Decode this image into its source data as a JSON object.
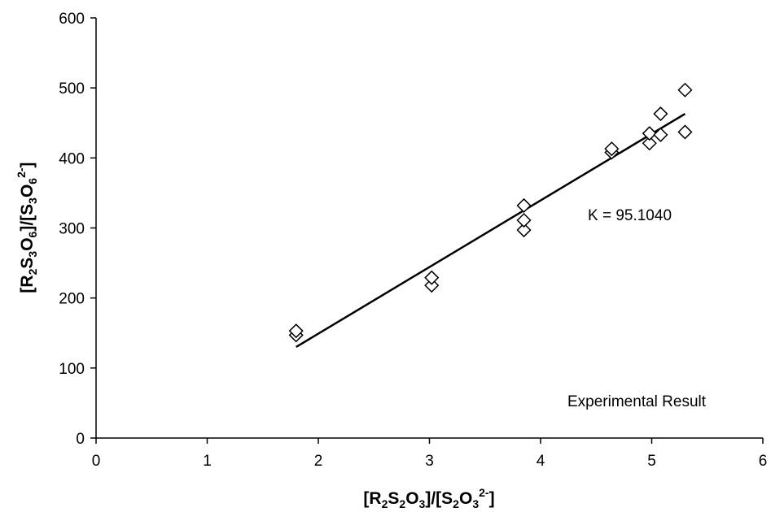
{
  "chart_data": {
    "type": "scatter",
    "xlim": [
      0,
      6
    ],
    "ylim": [
      0,
      600
    ],
    "x_ticks": [
      "0",
      "1",
      "2",
      "3",
      "4",
      "5",
      "6"
    ],
    "y_ticks": [
      "0",
      "100",
      "200",
      "300",
      "400",
      "500",
      "600"
    ],
    "xlabel": {
      "main": "[R",
      "sub1": "2",
      "mid1": "S",
      "sub2": "2",
      "mid2": "O",
      "sub3": "3",
      "mid3": "]/[S",
      "sub4": "2",
      "mid4": "O",
      "sub5": "3",
      "sup": "2-",
      "end": "]"
    },
    "ylabel": {
      "main": "[R",
      "sub1": "2",
      "mid1": "S",
      "sub2": "3",
      "mid2": "O",
      "sub3": "6",
      "mid3": "]/[S",
      "sub4": "3",
      "mid4": "O",
      "sub5": "6",
      "sup": "2-",
      "end": "]"
    },
    "grid": false,
    "points": [
      {
        "x": 1.8,
        "y": 147
      },
      {
        "x": 1.8,
        "y": 153
      },
      {
        "x": 3.02,
        "y": 218
      },
      {
        "x": 3.02,
        "y": 229
      },
      {
        "x": 3.85,
        "y": 297
      },
      {
        "x": 3.85,
        "y": 311
      },
      {
        "x": 3.85,
        "y": 332
      },
      {
        "x": 4.64,
        "y": 408
      },
      {
        "x": 4.64,
        "y": 413
      },
      {
        "x": 4.98,
        "y": 421
      },
      {
        "x": 4.98,
        "y": 435
      },
      {
        "x": 5.08,
        "y": 433
      },
      {
        "x": 5.08,
        "y": 463
      },
      {
        "x": 5.3,
        "y": 437
      },
      {
        "x": 5.3,
        "y": 497
      }
    ],
    "fit_line": {
      "x": [
        1.8,
        5.3
      ],
      "y": [
        130,
        463
      ]
    },
    "annotations": {
      "k_label": "K = 95.1040",
      "legend_label": "Experimental Result"
    }
  }
}
